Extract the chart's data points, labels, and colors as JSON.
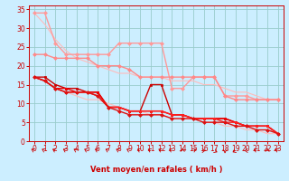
{
  "xlabel": "Vent moyen/en rafales ( km/h )",
  "bg_color": "#cceeff",
  "grid_color": "#99cccc",
  "x_values": [
    0,
    1,
    2,
    3,
    4,
    5,
    6,
    7,
    8,
    9,
    10,
    11,
    12,
    13,
    14,
    15,
    16,
    17,
    18,
    19,
    20,
    21,
    22,
    23
  ],
  "line_upper_env": {
    "y": [
      34,
      31,
      27,
      24,
      22,
      21,
      20,
      19,
      18,
      18,
      17,
      17,
      17,
      16,
      16,
      16,
      15,
      15,
      14,
      13,
      13,
      12,
      11,
      11
    ],
    "color": "#ffbbbb",
    "lw": 0.8,
    "marker": null
  },
  "line_lower_env": {
    "y": [
      17,
      16,
      14,
      13,
      12,
      11,
      11,
      10,
      9,
      8,
      8,
      7,
      7,
      6,
      6,
      6,
      5,
      5,
      4,
      4,
      3,
      3,
      2,
      2
    ],
    "color": "#ffbbbb",
    "lw": 0.8,
    "marker": null
  },
  "line_pink1": {
    "y": [
      34,
      34,
      26,
      23,
      23,
      23,
      23,
      23,
      26,
      26,
      26,
      26,
      26,
      14,
      14,
      17,
      17,
      17,
      12,
      12,
      12,
      11,
      11,
      11
    ],
    "color": "#ff9999",
    "lw": 1.0,
    "marker": "D",
    "ms": 2.0
  },
  "line_pink2": {
    "y": [
      23,
      23,
      22,
      22,
      22,
      22,
      20,
      20,
      20,
      19,
      17,
      17,
      17,
      17,
      17,
      17,
      17,
      17,
      12,
      11,
      11,
      11,
      11,
      11
    ],
    "color": "#ff8888",
    "lw": 1.0,
    "marker": "D",
    "ms": 2.0
  },
  "line_red1": {
    "y": [
      17,
      17,
      15,
      14,
      14,
      13,
      13,
      9,
      9,
      8,
      8,
      15,
      15,
      7,
      7,
      6,
      6,
      6,
      6,
      5,
      4,
      4,
      4,
      2
    ],
    "color": "#cc0000",
    "lw": 1.0,
    "marker": "s",
    "ms": 2.0
  },
  "line_red2": {
    "y": [
      17,
      16,
      14,
      14,
      13,
      13,
      13,
      9,
      9,
      8,
      8,
      8,
      8,
      7,
      7,
      6,
      6,
      6,
      6,
      5,
      4,
      4,
      4,
      2
    ],
    "color": "#ee0000",
    "lw": 1.0,
    "marker": "s",
    "ms": 2.0
  },
  "line_red3": {
    "y": [
      17,
      16,
      14,
      13,
      13,
      13,
      12,
      9,
      9,
      8,
      8,
      8,
      8,
      7,
      7,
      6,
      6,
      6,
      5,
      5,
      4,
      4,
      4,
      2
    ],
    "color": "#ff2222",
    "lw": 1.0,
    "marker": "s",
    "ms": 2.0
  },
  "line_red4": {
    "y": [
      17,
      16,
      14,
      13,
      13,
      13,
      12,
      9,
      8,
      7,
      7,
      7,
      7,
      6,
      6,
      6,
      5,
      5,
      5,
      4,
      4,
      3,
      3,
      2
    ],
    "color": "#dd1111",
    "lw": 1.0,
    "marker": "D",
    "ms": 2.0
  },
  "ylim": [
    0,
    36
  ],
  "xlim": [
    -0.5,
    23.5
  ],
  "yticks": [
    0,
    5,
    10,
    15,
    20,
    25,
    30,
    35
  ],
  "xticks": [
    0,
    1,
    2,
    3,
    4,
    5,
    6,
    7,
    8,
    9,
    10,
    11,
    12,
    13,
    14,
    15,
    16,
    17,
    18,
    19,
    20,
    21,
    22,
    23
  ],
  "tick_color": "#cc0000",
  "label_color": "#cc0000",
  "axis_color": "#cc0000",
  "wind_angles_deg": [
    225,
    225,
    225,
    225,
    225,
    225,
    225,
    225,
    225,
    225,
    225,
    225,
    225,
    225,
    180,
    135,
    90,
    45,
    0,
    315,
    270,
    225,
    180,
    225
  ]
}
